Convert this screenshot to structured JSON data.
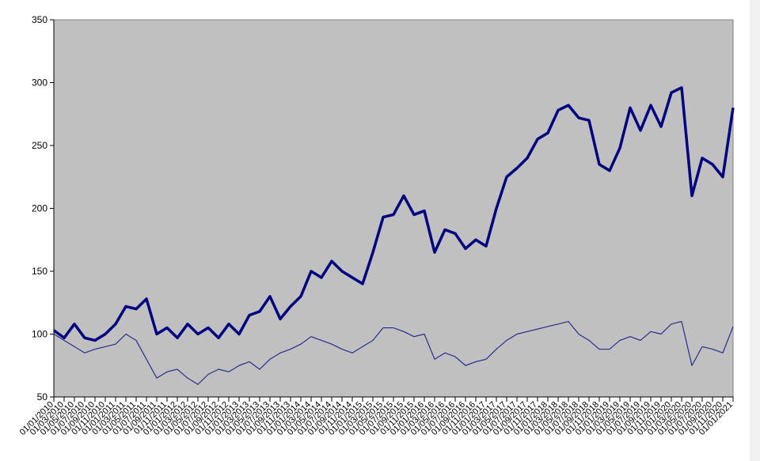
{
  "chart_data": {
    "type": "line",
    "categories": [
      "01/01/2010",
      "01/03/2010",
      "01/05/2010",
      "01/07/2010",
      "01/09/2010",
      "01/11/2010",
      "01/01/2011",
      "01/03/2011",
      "01/05/2011",
      "01/07/2011",
      "01/09/2011",
      "01/11/2011",
      "01/01/2012",
      "01/03/2012",
      "01/05/2012",
      "01/07/2012",
      "01/09/2012",
      "01/11/2012",
      "01/01/2013",
      "01/03/2013",
      "01/05/2013",
      "01/07/2013",
      "01/09/2013",
      "01/11/2013",
      "01/01/2014",
      "01/03/2014",
      "01/05/2014",
      "01/07/2014",
      "01/09/2014",
      "01/11/2014",
      "01/01/2015",
      "01/03/2015",
      "01/05/2015",
      "01/07/2015",
      "01/09/2015",
      "01/11/2015",
      "01/01/2016",
      "01/03/2016",
      "01/05/2016",
      "01/07/2016",
      "01/09/2016",
      "01/11/2016",
      "01/01/2017",
      "01/03/2017",
      "01/05/2017",
      "01/07/2017",
      "01/09/2017",
      "01/11/2017",
      "01/01/2018",
      "01/03/2018",
      "01/05/2018",
      "01/07/2018",
      "01/09/2018",
      "01/11/2018",
      "01/01/2019",
      "01/03/2019",
      "01/05/2019",
      "01/07/2019",
      "01/09/2019",
      "01/11/2019",
      "01/01/2020",
      "01/03/2020",
      "01/05/2020",
      "01/07/2020",
      "01/09/2020",
      "01/11/2020",
      "01/01/2021"
    ],
    "series": [
      {
        "color": "#000080",
        "width": 3.5,
        "values": [
          103,
          97,
          108,
          97,
          95,
          100,
          108,
          122,
          120,
          128,
          100,
          105,
          97,
          108,
          100,
          105,
          97,
          108,
          100,
          115,
          118,
          130,
          112,
          122,
          130,
          150,
          145,
          158,
          150,
          145,
          140,
          165,
          193,
          195,
          210,
          195,
          198,
          165,
          183,
          180,
          168,
          175,
          170,
          200,
          225,
          232,
          240,
          255,
          260,
          278,
          282,
          272,
          270,
          235,
          230,
          248,
          280,
          262,
          282,
          265,
          292,
          296,
          210,
          240,
          235,
          225,
          280
        ]
      },
      {
        "color": "#2b2b8f",
        "width": 1.2,
        "values": [
          100,
          95,
          90,
          85,
          88,
          90,
          92,
          100,
          95,
          80,
          65,
          70,
          72,
          65,
          60,
          68,
          72,
          70,
          75,
          78,
          72,
          80,
          85,
          88,
          92,
          98,
          95,
          92,
          88,
          85,
          90,
          95,
          105,
          105,
          102,
          98,
          100,
          80,
          85,
          82,
          75,
          78,
          80,
          88,
          95,
          100,
          102,
          104,
          106,
          108,
          110,
          100,
          95,
          88,
          88,
          95,
          98,
          95,
          102,
          100,
          108,
          110,
          75,
          90,
          88,
          85,
          106
        ]
      }
    ],
    "ylim": [
      50,
      350
    ],
    "yticks": [
      50,
      100,
      150,
      200,
      250,
      300,
      350
    ],
    "background": "#c0c0c0"
  }
}
